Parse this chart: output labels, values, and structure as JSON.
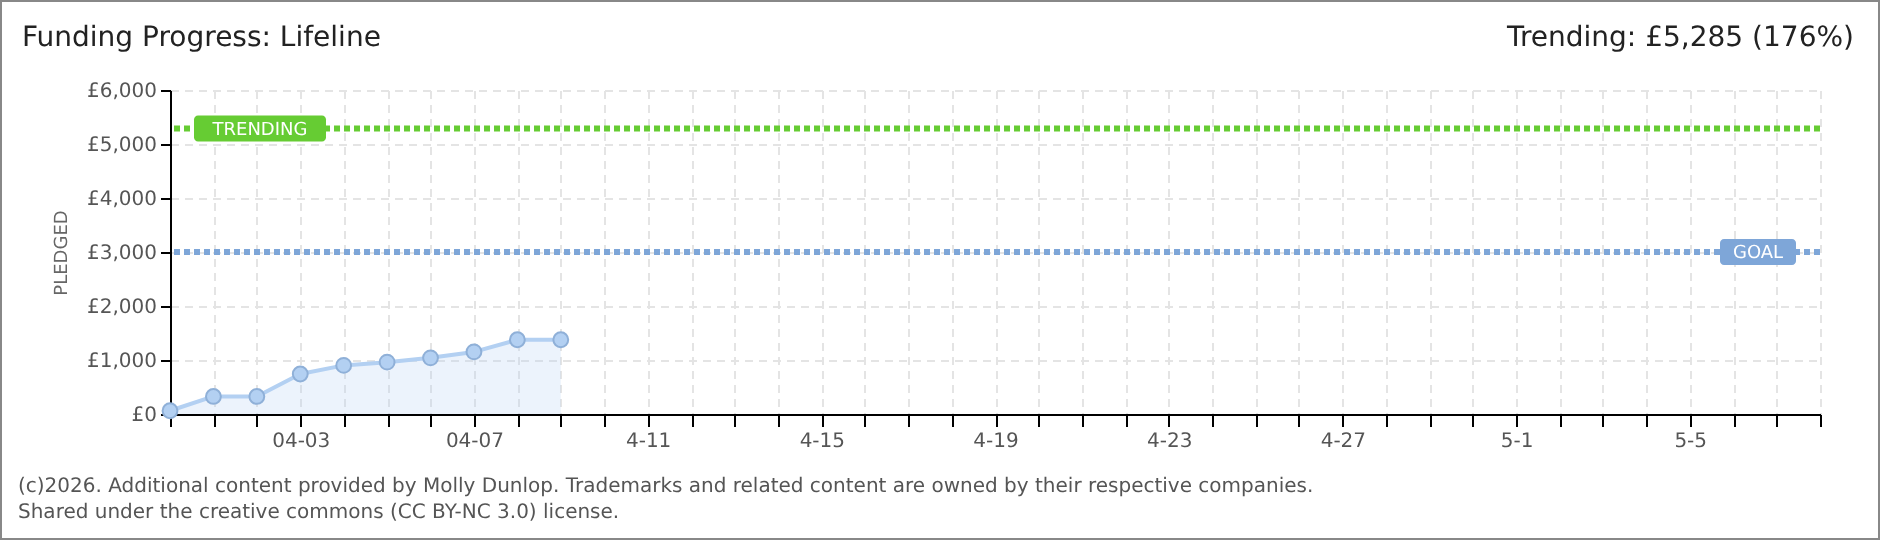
{
  "chart_data": {
    "type": "area",
    "title": "Funding Progress: Lifeline",
    "subtitle": "Trending: £5,285 (176%)",
    "ylabel": "PLEDGED",
    "annotations": [
      "(c)2026. Additional content provided by Molly Dunlop. Trademarks and related content are owned by their respective companies.",
      "Shared under the creative commons (CC BY-NC 3.0) license."
    ],
    "x": [
      "--03-31",
      "--04-01",
      "--04-02",
      "--04-03",
      "--04-04",
      "--04-05",
      "--04-06",
      "--04-07",
      "--04-08",
      "--04-09"
    ],
    "series": [
      {
        "color": "#b3d0f2",
        "values": [
          60,
          325,
          325,
          740,
          900,
          960,
          1040,
          1150,
          1375,
          1375
        ]
      }
    ],
    "marker": "circle",
    "grid": true,
    "xlim": [
      "--03-31",
      "--05-08"
    ],
    "xticks": [
      {
        "value": "--03-31",
        "label": null
      },
      {
        "value": "--04-01",
        "label": null
      },
      {
        "value": "--04-02",
        "label": null
      },
      {
        "value": "--04-03",
        "label": "04-03"
      },
      {
        "value": "--04-04",
        "label": null
      },
      {
        "value": "--04-05",
        "label": null
      },
      {
        "value": "--04-06",
        "label": null
      },
      {
        "value": "--04-07",
        "label": "04-07"
      },
      {
        "value": "--04-08",
        "label": null
      },
      {
        "value": "--04-09",
        "label": null
      },
      {
        "value": "--04-10",
        "label": null
      },
      {
        "value": "--04-11",
        "label": "4-11"
      },
      {
        "value": "--04-12",
        "label": null
      },
      {
        "value": "--04-13",
        "label": null
      },
      {
        "value": "--04-14",
        "label": null
      },
      {
        "value": "--04-15",
        "label": "4-15"
      },
      {
        "value": "--04-16",
        "label": null
      },
      {
        "value": "--04-17",
        "label": null
      },
      {
        "value": "--04-18",
        "label": null
      },
      {
        "value": "--04-19",
        "label": "4-19"
      },
      {
        "value": "--04-20",
        "label": null
      },
      {
        "value": "--04-21",
        "label": null
      },
      {
        "value": "--04-22",
        "label": null
      },
      {
        "value": "--04-23",
        "label": "4-23"
      },
      {
        "value": "--04-24",
        "label": null
      },
      {
        "value": "--04-25",
        "label": null
      },
      {
        "value": "--04-26",
        "label": null
      },
      {
        "value": "--04-27",
        "label": "4-27"
      },
      {
        "value": "--04-28",
        "label": null
      },
      {
        "value": "--04-29",
        "label": null
      },
      {
        "value": "--04-30",
        "label": null
      },
      {
        "value": "--05-01",
        "label": "5-1"
      },
      {
        "value": "--05-02",
        "label": null
      },
      {
        "value": "--05-03",
        "label": null
      },
      {
        "value": "--05-04",
        "label": null
      },
      {
        "value": "--05-05",
        "label": "5-5"
      },
      {
        "value": "--05-06",
        "label": null
      },
      {
        "value": "--05-07",
        "label": null
      },
      {
        "value": "--05-08",
        "label": null
      }
    ],
    "ylim": [
      0,
      6000
    ],
    "yticks": [
      {
        "value": 0,
        "label": "£0"
      },
      {
        "value": 1000,
        "label": "£1,000"
      },
      {
        "value": 2000,
        "label": "£2,000"
      },
      {
        "value": 3000,
        "label": "£3,000"
      },
      {
        "value": 4000,
        "label": "£4,000"
      },
      {
        "value": 5000,
        "label": "£5,000"
      },
      {
        "value": 6000,
        "label": "£6,000"
      }
    ],
    "ref_lines": [
      {
        "axis": "y",
        "value": 5285,
        "label": "TRENDING",
        "color": "#66cc33",
        "line_style": "dotted"
      },
      {
        "axis": "y",
        "value": 3000,
        "label": "GOAL",
        "color": "#7ea6d8",
        "line_style": "dotted"
      }
    ]
  }
}
